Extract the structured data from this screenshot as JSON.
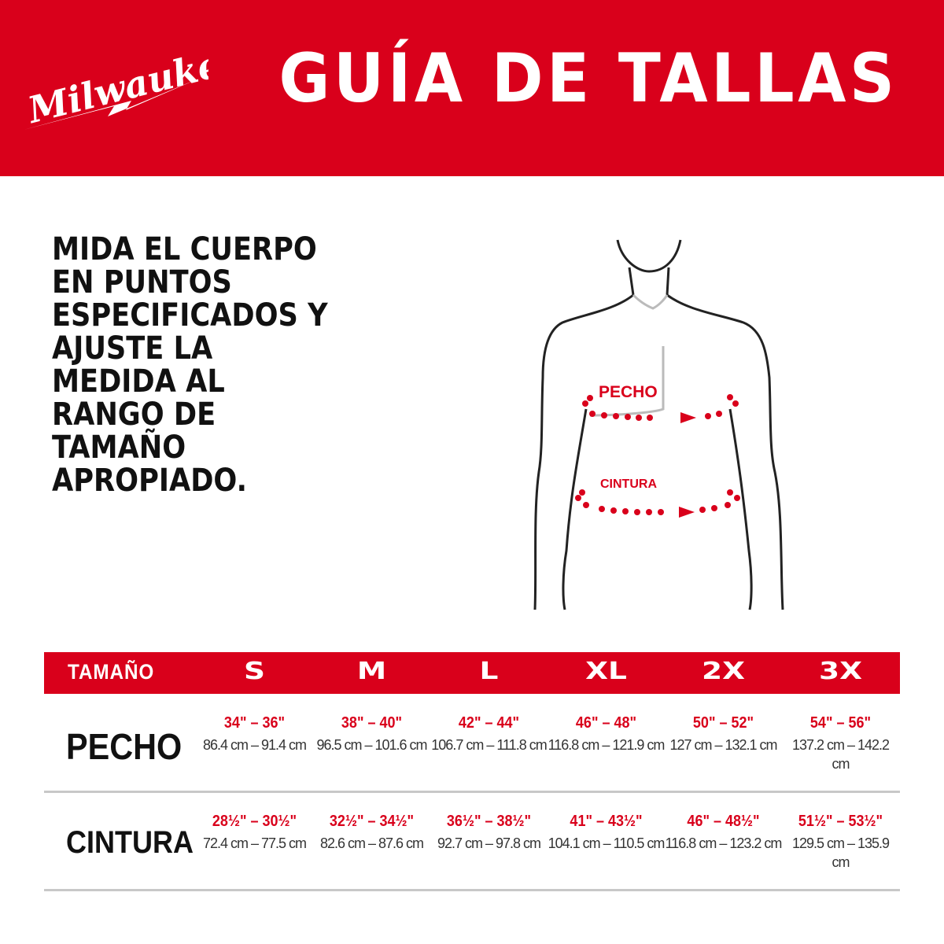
{
  "header": {
    "brand": "Milwaukee",
    "title": "GUÍA DE TALLAS",
    "brand_color": "#d9001b"
  },
  "instructions": "MIDA EL CUERPO EN PUNTOS ESPECIFICADOS Y AJUSTE LA MEDIDA AL RANGO DE TAMAÑO APROPIADO.",
  "figure": {
    "chest_label": "PECHO",
    "waist_label": "CINTURA"
  },
  "table": {
    "header_label": "TAMAÑO",
    "sizes": [
      "S",
      "M",
      "L",
      "XL",
      "2X",
      "3X"
    ],
    "rows": [
      {
        "label": "PECHO",
        "cells": [
          {
            "in": "34\" – 36\"",
            "cm": "86.4 cm – 91.4 cm"
          },
          {
            "in": "38\" – 40\"",
            "cm": "96.5 cm – 101.6 cm"
          },
          {
            "in": "42\" – 44\"",
            "cm": "106.7 cm – 111.8 cm"
          },
          {
            "in": "46\" – 48\"",
            "cm": "116.8 cm – 121.9 cm"
          },
          {
            "in": "50\" – 52\"",
            "cm": "127 cm – 132.1 cm"
          },
          {
            "in": "54\" – 56\"",
            "cm": "137.2 cm – 142.2 cm"
          }
        ]
      },
      {
        "label": "CINTURA",
        "cells": [
          {
            "in": "28½\" – 30½\"",
            "cm": "72.4 cm – 77.5 cm"
          },
          {
            "in": "32½\" – 34½\"",
            "cm": "82.6 cm – 87.6 cm"
          },
          {
            "in": "36½\" – 38½\"",
            "cm": "92.7 cm – 97.8 cm"
          },
          {
            "in": "41\" – 43½\"",
            "cm": "104.1 cm – 110.5 cm"
          },
          {
            "in": "46\" – 48½\"",
            "cm": "116.8 cm – 123.2 cm"
          },
          {
            "in": "51½\" – 53½\"",
            "cm": "129.5 cm – 135.9 cm"
          }
        ]
      }
    ]
  }
}
